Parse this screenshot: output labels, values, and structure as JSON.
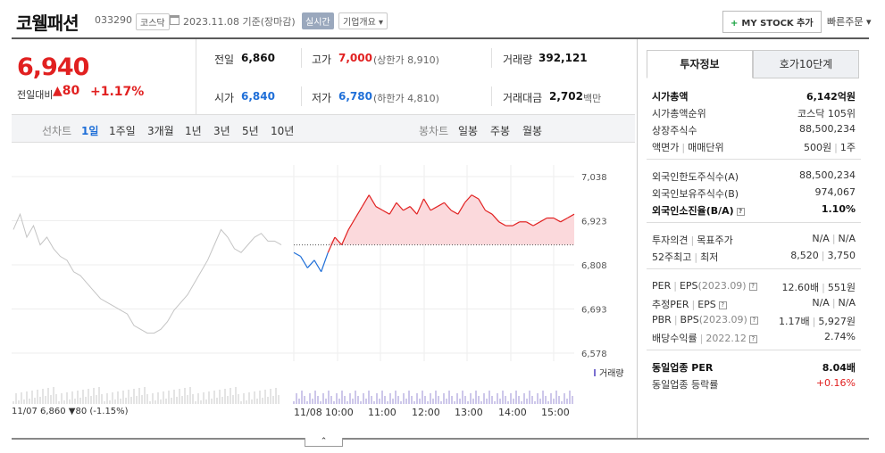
{
  "header": {
    "name": "코웰패션",
    "code": "033290",
    "market": "코스닥",
    "date_text": "2023.11.08 기준(장마감)",
    "realtime": "실시간",
    "company_info": "기업개요 ▾",
    "my_stock": "MY STOCK 추가",
    "my_stock_plus": "+",
    "quick_order": "빠른주문 ▾"
  },
  "quote": {
    "price": "6,940",
    "change_label": "전일대비",
    "change": "▲80",
    "rate": "+1.17%"
  },
  "metrics": {
    "prev_label": "전일",
    "prev": "6,860",
    "high_label": "고가",
    "high": "7,000",
    "upper": "(상한가 8,910)",
    "volume_label": "거래량",
    "volume": "392,121",
    "open_label": "시가",
    "open": "6,840",
    "low_label": "저가",
    "low": "6,780",
    "lower": "(하한가 4,810)",
    "amount_label": "거래대금",
    "amount": "2,702",
    "amount_unit": "백만"
  },
  "tabs": {
    "line_label": "선차트",
    "line": [
      "1일",
      "1주일",
      "3개월",
      "1년",
      "3년",
      "5년",
      "10년"
    ],
    "candle_label": "봉차트",
    "candle": [
      "일봉",
      "주봉",
      "월봉"
    ]
  },
  "chart_data": {
    "type": "line",
    "ylabels": [
      "7,038",
      "6,923",
      "6,808",
      "6,693",
      "6,578"
    ],
    "ylim": [
      6578,
      7038
    ],
    "xlabels": [
      "11/07",
      "11/08",
      "10:00",
      "11:00",
      "12:00",
      "13:00",
      "14:00",
      "15:00"
    ],
    "volume_legend": "거래량",
    "prev_close": 6860,
    "footer": "11/07  6,860 ▼80 (-1.15%)",
    "series": [
      {
        "day": "11/07",
        "values": [
          6900,
          6940,
          6880,
          6910,
          6860,
          6880,
          6850,
          6830,
          6820,
          6790,
          6780,
          6760,
          6740,
          6720,
          6710,
          6700,
          6690,
          6680,
          6650,
          6640,
          6630,
          6630,
          6640,
          6660,
          6690,
          6710,
          6730,
          6760,
          6790,
          6820,
          6860,
          6900,
          6880,
          6850,
          6840,
          6860,
          6880,
          6890,
          6870,
          6870,
          6860
        ]
      },
      {
        "day": "11/08",
        "values": [
          6840,
          6830,
          6800,
          6820,
          6790,
          6840,
          6880,
          6860,
          6900,
          6930,
          6960,
          6990,
          6960,
          6950,
          6940,
          6970,
          6950,
          6960,
          6940,
          6980,
          6950,
          6960,
          6970,
          6950,
          6940,
          6970,
          6990,
          6980,
          6950,
          6940,
          6920,
          6910,
          6910,
          6920,
          6920,
          6910,
          6920,
          6930,
          6930,
          6920,
          6930,
          6940
        ]
      }
    ]
  },
  "right": {
    "tab1": "투자정보",
    "tab2": "호가10단계",
    "market_cap_label": "시가총액",
    "market_cap": "6,142억원",
    "cap_rank_label": "시가총액순위",
    "cap_rank": "코스닥 105위",
    "shares_label": "상장주식수",
    "shares": "88,500,234",
    "par_label": "액면가",
    "lot_label": "매매단위",
    "par": "500원",
    "lot": "1주",
    "foreign_limit_label": "외국인한도주식수(A)",
    "foreign_limit": "88,500,234",
    "foreign_hold_label": "외국인보유주식수(B)",
    "foreign_hold": "974,067",
    "foreign_ratio_label": "외국인소진율(B/A)",
    "foreign_ratio": "1.10%",
    "opinion_label": "투자의견",
    "target_label": "목표주가",
    "opinion": "N/A",
    "target": "N/A",
    "w52_high_label": "52주최고",
    "w52_low_label": "최저",
    "w52_high": "8,520",
    "w52_low": "3,750",
    "per_label": "PER",
    "eps_label": "EPS",
    "per_date": "(2023.09)",
    "per": "12.60배",
    "eps": "551원",
    "est_per_label": "추정PER",
    "est_eps_label": "EPS",
    "est_per": "N/A",
    "est_eps": "N/A",
    "pbr_label": "PBR",
    "bps_label": "BPS",
    "pbr_date": "(2023.09)",
    "pbr": "1.17배",
    "bps": "5,927원",
    "div_label": "배당수익률",
    "div_date": "2022.12",
    "div": "2.74%",
    "sector_per_label": "동일업종 PER",
    "sector_per": "8.04배",
    "sector_rate_label": "동일업종 등락률",
    "sector_rate": "+0.16%",
    "colors": {
      "up": "#e12020",
      "down": "#1f6fd8"
    }
  }
}
